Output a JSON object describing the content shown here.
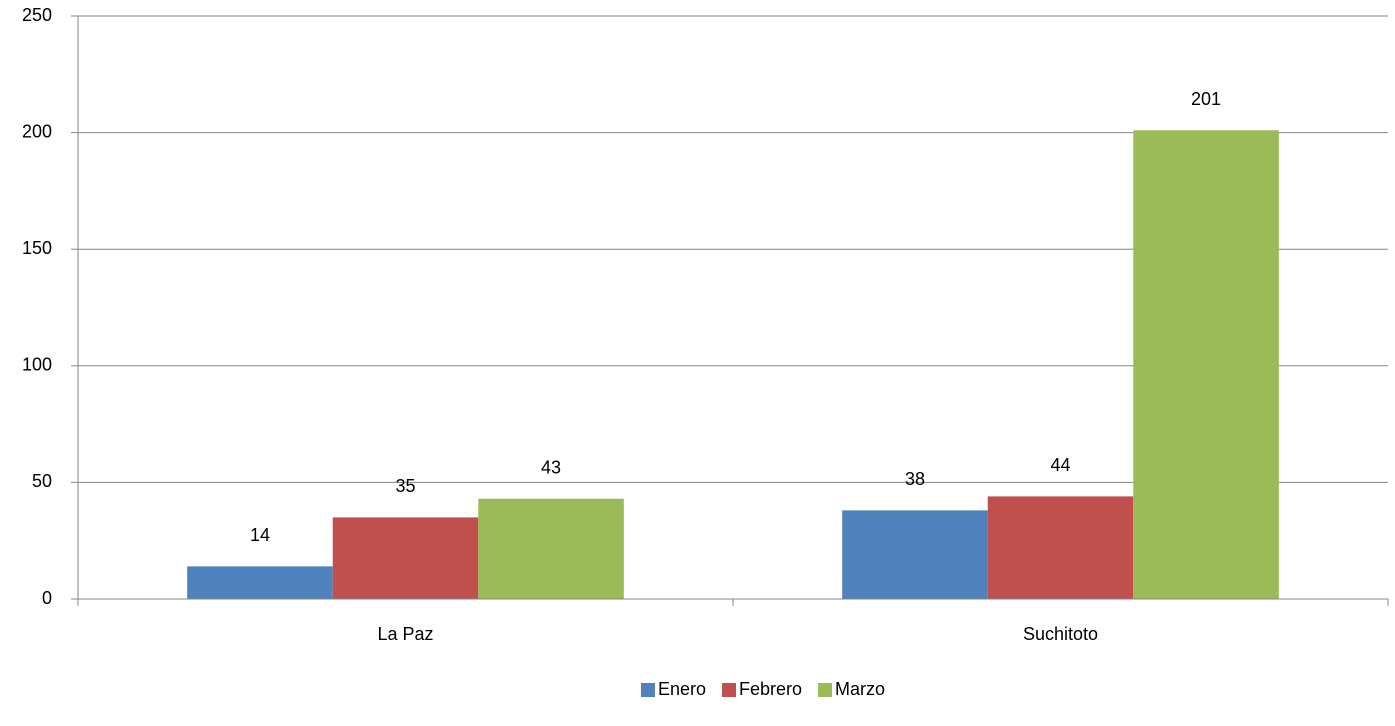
{
  "chart_data": {
    "type": "bar",
    "categories": [
      "La Paz",
      "Suchitoto"
    ],
    "series": [
      {
        "name": "Enero",
        "color": "#4f81bd",
        "values": [
          14,
          38
        ]
      },
      {
        "name": "Febrero",
        "color": "#c0504d",
        "values": [
          35,
          44
        ]
      },
      {
        "name": "Marzo",
        "color": "#9bbb59",
        "values": [
          43,
          201
        ]
      }
    ],
    "ylim": [
      0,
      250
    ],
    "yticks": [
      0,
      50,
      100,
      150,
      200,
      250
    ],
    "grid": true,
    "legend": "bottom"
  }
}
